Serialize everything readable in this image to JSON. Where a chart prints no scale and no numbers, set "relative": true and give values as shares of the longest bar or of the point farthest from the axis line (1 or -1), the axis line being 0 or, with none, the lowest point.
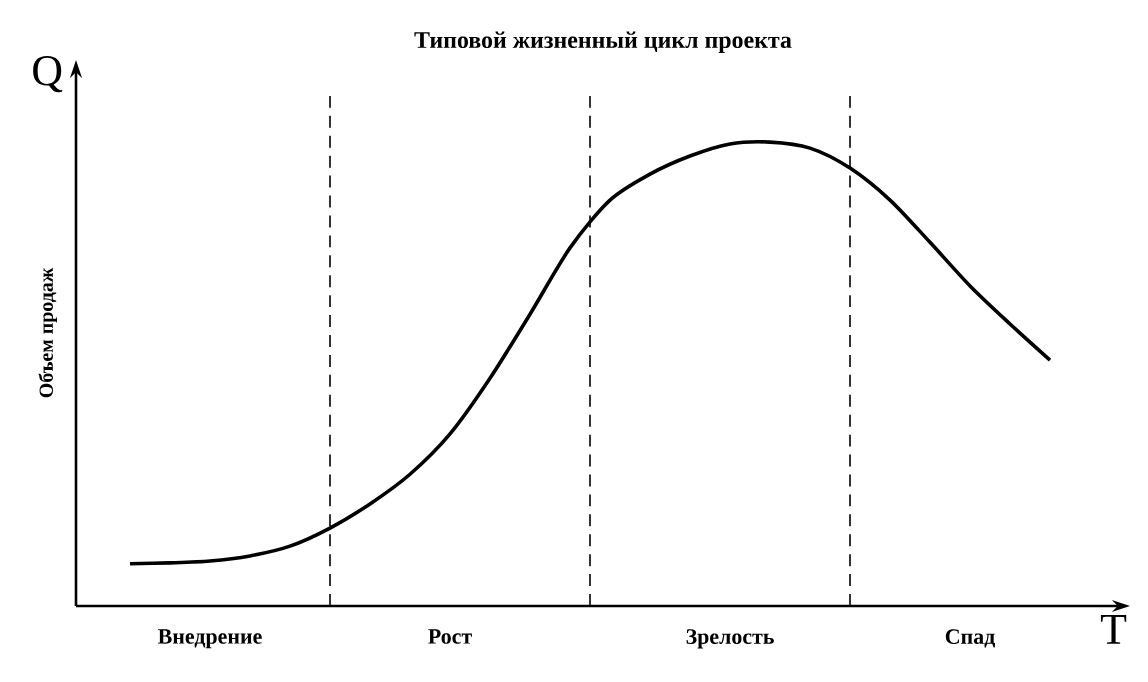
{
  "chart_data": {
    "type": "line",
    "title": "Типовой жизненный цикл проекта",
    "xlabel": "T",
    "ylabel": "Объем продаж",
    "annotations": [
      "Q"
    ],
    "relative": true,
    "categories": [
      null,
      null,
      "Внедрение",
      null,
      null,
      null,
      null,
      null,
      "Рост",
      null,
      null,
      null,
      null,
      null,
      null,
      "Зрелость",
      null,
      null,
      null,
      null,
      null,
      "Спад",
      null,
      null
    ],
    "series": [
      {
        "color": "#000000",
        "values": [
          0.091,
          0.093,
          0.097,
          0.108,
          0.129,
          0.168,
          0.22,
          0.284,
          0.371,
          0.491,
          0.629,
          0.772,
          0.875,
          0.931,
          0.97,
          0.996,
          1,
          0.987,
          0.944,
          0.875,
          0.784,
          0.69,
          0.608,
          0.53
        ]
      }
    ],
    "marker": "none",
    "line_style": "solid"
  }
}
